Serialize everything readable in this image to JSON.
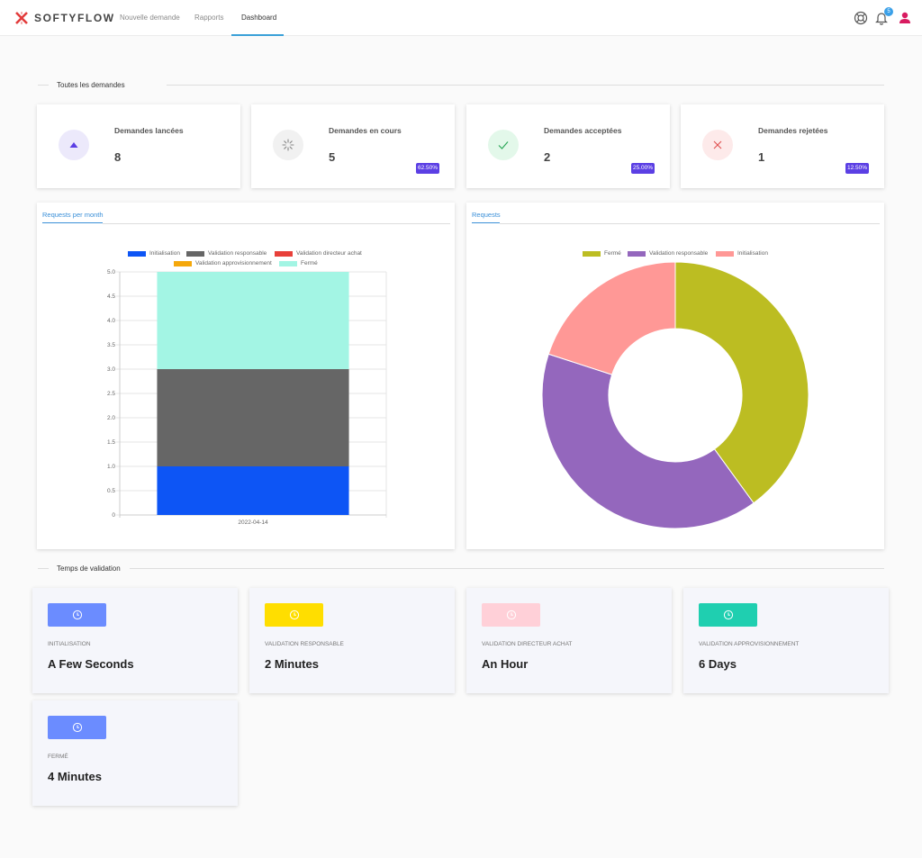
{
  "app": {
    "logo_text": "SOFTYFLOW",
    "brand_color": "#e23b3b"
  },
  "nav": {
    "items": [
      {
        "label": "Nouvelle demande"
      },
      {
        "label": "Rapports"
      },
      {
        "label": "Dashboard",
        "active": true
      }
    ]
  },
  "header_icons": {
    "help": "lifebuoy-icon",
    "notifications": "bell-icon",
    "notification_count": "5",
    "user": "user-icon"
  },
  "sections": {
    "requests_title": "Toutes les demandes",
    "validation_title": "Temps de validation"
  },
  "stats": [
    {
      "label": "Demandes lancées",
      "value": "8",
      "icon": "triangle-up-icon",
      "icon_bg": "#ece9fb",
      "icon_color": "#5b3fe4"
    },
    {
      "label": "Demandes en cours",
      "value": "5",
      "pct": "62.50%",
      "icon": "spinner-icon",
      "icon_bg": "#f1f1f1",
      "icon_color": "#888888"
    },
    {
      "label": "Demandes acceptées",
      "value": "2",
      "pct": "25.00%",
      "icon": "check-icon",
      "icon_bg": "#e3f8ea",
      "icon_color": "#2ea85a"
    },
    {
      "label": "Demandes rejetées",
      "value": "1",
      "pct": "12.50%",
      "icon": "x-icon",
      "icon_bg": "#fdeaea",
      "icon_color": "#e05050"
    }
  ],
  "charts": {
    "bar_tab": "Requests per month",
    "pie_tab": "Requests"
  },
  "chart_data": [
    {
      "type": "bar",
      "stacked": true,
      "categories": [
        "2022-04-14"
      ],
      "series": [
        {
          "name": "Initialisation",
          "values": [
            1
          ],
          "color": "#0d55f5"
        },
        {
          "name": "Validation responsable",
          "values": [
            2
          ],
          "color": "#666666"
        },
        {
          "name": "Validation directeur achat",
          "values": [
            0
          ],
          "color": "#e8403a"
        },
        {
          "name": "Validation approvisionnement",
          "values": [
            0
          ],
          "color": "#f5a80b"
        },
        {
          "name": "Fermé",
          "values": [
            2
          ],
          "color": "#a3f5e4"
        }
      ],
      "ylim": [
        0,
        5
      ],
      "yticks": [
        "0",
        "0.5",
        "1.0",
        "1.5",
        "2.0",
        "2.5",
        "3.0",
        "3.5",
        "4.0",
        "4.5",
        "5.0"
      ],
      "grid": true,
      "legend": "top"
    },
    {
      "type": "pie",
      "donut": true,
      "slices": [
        {
          "name": "Fermé",
          "value": 2,
          "color": "#bcbd22"
        },
        {
          "name": "Validation responsable",
          "value": 2,
          "color": "#9467bd"
        },
        {
          "name": "Initialisation",
          "value": 1,
          "color": "#ff9896"
        }
      ],
      "legend": "top"
    }
  ],
  "validation_times": [
    {
      "label": "INITIALISATION",
      "value": "A Few Seconds",
      "color": "#6b8cff"
    },
    {
      "label": "VALIDATION RESPONSABLE",
      "value": "2 Minutes",
      "color": "#ffde00"
    },
    {
      "label": "VALIDATION DIRECTEUR ACHAT",
      "value": "An Hour",
      "color": "#ffd0d8"
    },
    {
      "label": "VALIDATION APPROVISIONNEMENT",
      "value": "6 Days",
      "color": "#1fcfb0"
    },
    {
      "label": "FERMÉ",
      "value": "4 Minutes",
      "color": "#6b8cff"
    }
  ]
}
